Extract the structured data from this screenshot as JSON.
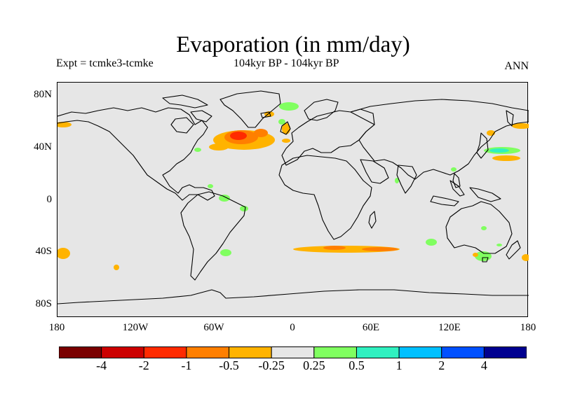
{
  "title": "Evaporation (in mm/day)",
  "subtitle_left": "Expt = tcmke3-tcmke",
  "subtitle_center": "104kyr BP - 104kyr BP",
  "subtitle_right": "ANN",
  "lat_labels": [
    "80N",
    "40N",
    "0",
    "40S",
    "80S"
  ],
  "lon_labels": [
    "180",
    "120W",
    "60W",
    "0",
    "60E",
    "120E",
    "180"
  ],
  "colorbar": {
    "colors": [
      "#7a0000",
      "#cc0000",
      "#ff2a00",
      "#ff7f00",
      "#ffb300",
      "#e6e6e6",
      "#80ff60",
      "#30f0c0",
      "#00c0ff",
      "#0050ff",
      "#000090"
    ],
    "labels": [
      "-4",
      "-2",
      "-1",
      "-0.5",
      "-0.25",
      "0.25",
      "0.5",
      "1",
      "2",
      "4"
    ]
  },
  "colors": {
    "map_background": "#e6e6e6",
    "strong_negative": "#ff2a00",
    "moderate_negative": "#ff7f00",
    "weak_negative": "#ffb300",
    "weak_positive": "#80ff60",
    "moderate_positive": "#30f0c0"
  }
}
